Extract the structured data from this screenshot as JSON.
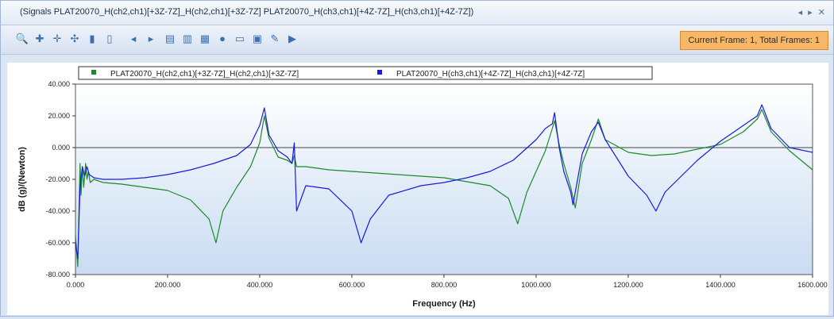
{
  "window": {
    "title": "(Signals PLAT20070_H(ch2,ch1)[+3Z-7Z]_H(ch2,ch1)[+3Z-7Z] PLAT20070_H(ch3,ch1)[+4Z-7Z]_H(ch3,ch1)[+4Z-7Z])",
    "controls": "◂ ▸ ✕"
  },
  "toolbar": {
    "icons": [
      "zoom-icon",
      "pan-icon",
      "crosshair-icon",
      "cursor-icon",
      "bar-icon",
      "filter-icon",
      "prev-icon",
      "next-icon",
      "copy-icon",
      "paste-icon",
      "export-icon",
      "palette-icon",
      "window-icon",
      "layout-icon",
      "edit-icon",
      "flag-icon"
    ],
    "frame_info": "Current Frame: 1, Total Frames: 1"
  },
  "chart_data": {
    "type": "line",
    "xlabel": "Frequency (Hz)",
    "ylabel": "dB (g)/(Newton)",
    "xlim": [
      0,
      1600
    ],
    "ylim": [
      -80,
      40
    ],
    "xticks": [
      "0.000",
      "200.000",
      "400.000",
      "600.000",
      "800.000",
      "1000.000",
      "1200.000",
      "1400.000",
      "1600.000"
    ],
    "yticks": [
      "-80.000",
      "-60.000",
      "-40.000",
      "-20.000",
      "0.000",
      "20.000",
      "40.000"
    ],
    "legend_position": "top",
    "series": [
      {
        "name": "PLAT20070_H(ch2,ch1)[+3Z-7Z]_H(ch2,ch1)[+3Z-7Z]",
        "color": "#1a8a2a",
        "x": [
          0,
          5,
          10,
          12,
          15,
          18,
          22,
          25,
          28,
          32,
          40,
          60,
          100,
          150,
          200,
          250,
          290,
          305,
          320,
          350,
          380,
          400,
          410,
          420,
          440,
          460,
          470,
          475,
          480,
          500,
          550,
          600,
          700,
          800,
          900,
          940,
          960,
          980,
          1000,
          1020,
          1035,
          1040,
          1050,
          1060,
          1075,
          1085,
          1100,
          1120,
          1135,
          1150,
          1200,
          1250,
          1300,
          1400,
          1450,
          1480,
          1490,
          1510,
          1550,
          1600
        ],
        "y": [
          -55,
          -75,
          -10,
          -30,
          -12,
          -25,
          -10,
          -20,
          -15,
          -22,
          -20,
          -22,
          -23,
          -25,
          -27,
          -33,
          -45,
          -60,
          -40,
          -25,
          -12,
          3,
          20,
          6,
          -6,
          -8,
          -10,
          -5,
          -12,
          -12,
          -14,
          -15,
          -17,
          -19,
          -24,
          -32,
          -48,
          -28,
          -15,
          -2,
          12,
          17,
          2,
          -10,
          -25,
          -38,
          -10,
          5,
          18,
          5,
          -3,
          -5,
          -4,
          2,
          10,
          18,
          24,
          10,
          -2,
          -14
        ]
      },
      {
        "name": "PLAT20070_H(ch3,ch1)[+4Z-7Z]_H(ch3,ch1)[+4Z-7Z]",
        "color": "#1a1ae0",
        "x": [
          0,
          5,
          10,
          15,
          20,
          25,
          30,
          40,
          60,
          100,
          150,
          200,
          250,
          300,
          350,
          380,
          400,
          410,
          420,
          440,
          460,
          470,
          475,
          480,
          490,
          500,
          550,
          600,
          620,
          640,
          680,
          750,
          800,
          850,
          900,
          950,
          1000,
          1020,
          1035,
          1040,
          1050,
          1060,
          1075,
          1080,
          1090,
          1100,
          1120,
          1135,
          1150,
          1200,
          1240,
          1260,
          1280,
          1350,
          1400,
          1450,
          1480,
          1490,
          1510,
          1550,
          1600
        ],
        "y": [
          -60,
          -70,
          -25,
          -12,
          -18,
          -12,
          -17,
          -19,
          -20,
          -20,
          -19,
          -17,
          -14,
          -10,
          -5,
          2,
          14,
          25,
          8,
          -2,
          -6,
          -10,
          3,
          -40,
          -32,
          -24,
          -26,
          -40,
          -60,
          -45,
          -30,
          -24,
          -22,
          -19,
          -15,
          -8,
          5,
          12,
          15,
          22,
          0,
          -15,
          -28,
          -36,
          -20,
          -4,
          10,
          16,
          5,
          -18,
          -30,
          -40,
          -28,
          -8,
          4,
          14,
          20,
          27,
          12,
          0,
          -3
        ]
      }
    ]
  }
}
